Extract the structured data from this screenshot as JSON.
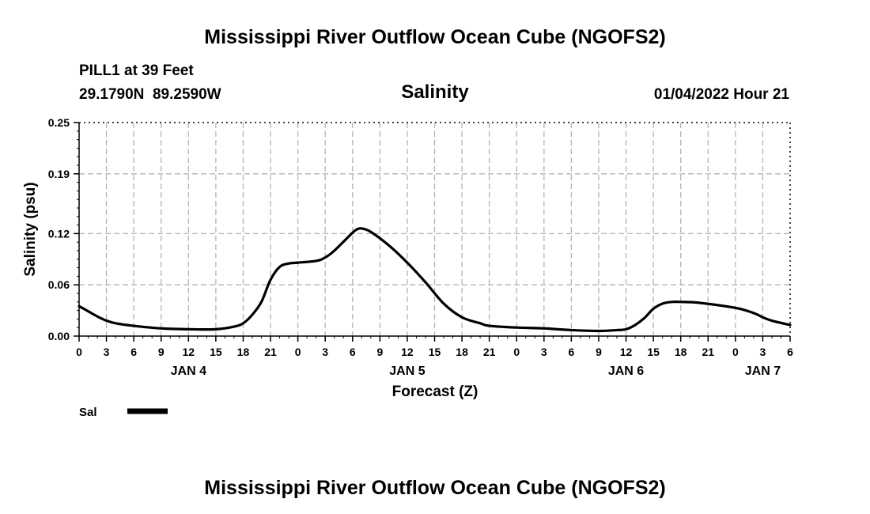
{
  "page": {
    "title": "Mississippi River Outflow Ocean Cube (NGOFS2)",
    "footer_title": "Mississippi River Outflow Ocean Cube (NGOFS2)"
  },
  "station": {
    "name_depth": "PILL1 at 39 Feet",
    "coords": "29.1790N  89.2590W",
    "timestamp": "01/04/2022 Hour 21"
  },
  "chart_data": {
    "type": "line",
    "title": "Salinity",
    "xlabel": "Forecast (Z)",
    "ylabel": "Salinity (psu)",
    "ylim": [
      0,
      0.25
    ],
    "y_ticks": [
      0,
      0.06,
      0.12,
      0.19,
      0.25
    ],
    "y_tick_labels": [
      "0.00",
      "0.06",
      "0.12",
      "0.19",
      "0.25"
    ],
    "x_range_hours": [
      0,
      78
    ],
    "x_tick_labels": [
      "0",
      "3",
      "6",
      "9",
      "12",
      "15",
      "18",
      "21",
      "0",
      "3",
      "6",
      "9",
      "12",
      "15",
      "18",
      "21",
      "0",
      "3",
      "6",
      "9",
      "12",
      "15",
      "18",
      "21",
      "0",
      "3",
      "6"
    ],
    "day_labels": [
      {
        "label": "JAN 4",
        "hour": 12
      },
      {
        "label": "JAN 5",
        "hour": 36
      },
      {
        "label": "JAN 6",
        "hour": 60
      },
      {
        "label": "JAN 7",
        "hour": 75
      }
    ],
    "grid": true,
    "legend_position": "bottom-left",
    "series": [
      {
        "name": "Sal",
        "color": "#000000",
        "x": [
          0,
          1,
          2,
          3,
          4,
          6,
          9,
          12,
          15,
          17,
          18,
          19,
          20,
          21,
          22,
          23,
          24,
          26,
          27,
          28,
          30,
          30.5,
          31,
          32,
          34,
          36,
          38,
          40,
          42,
          44,
          45,
          48,
          51,
          54,
          57,
          59,
          60,
          61,
          62,
          63,
          64,
          65,
          66,
          68,
          72,
          74,
          75,
          76,
          78
        ],
        "values": [
          0.035,
          0.029,
          0.023,
          0.018,
          0.015,
          0.012,
          0.009,
          0.008,
          0.008,
          0.011,
          0.015,
          0.025,
          0.04,
          0.066,
          0.081,
          0.085,
          0.086,
          0.088,
          0.092,
          0.1,
          0.121,
          0.125,
          0.126,
          0.122,
          0.106,
          0.086,
          0.063,
          0.038,
          0.022,
          0.015,
          0.012,
          0.01,
          0.009,
          0.007,
          0.006,
          0.007,
          0.008,
          0.013,
          0.021,
          0.032,
          0.038,
          0.04,
          0.04,
          0.039,
          0.033,
          0.027,
          0.022,
          0.018,
          0.013
        ]
      }
    ]
  }
}
